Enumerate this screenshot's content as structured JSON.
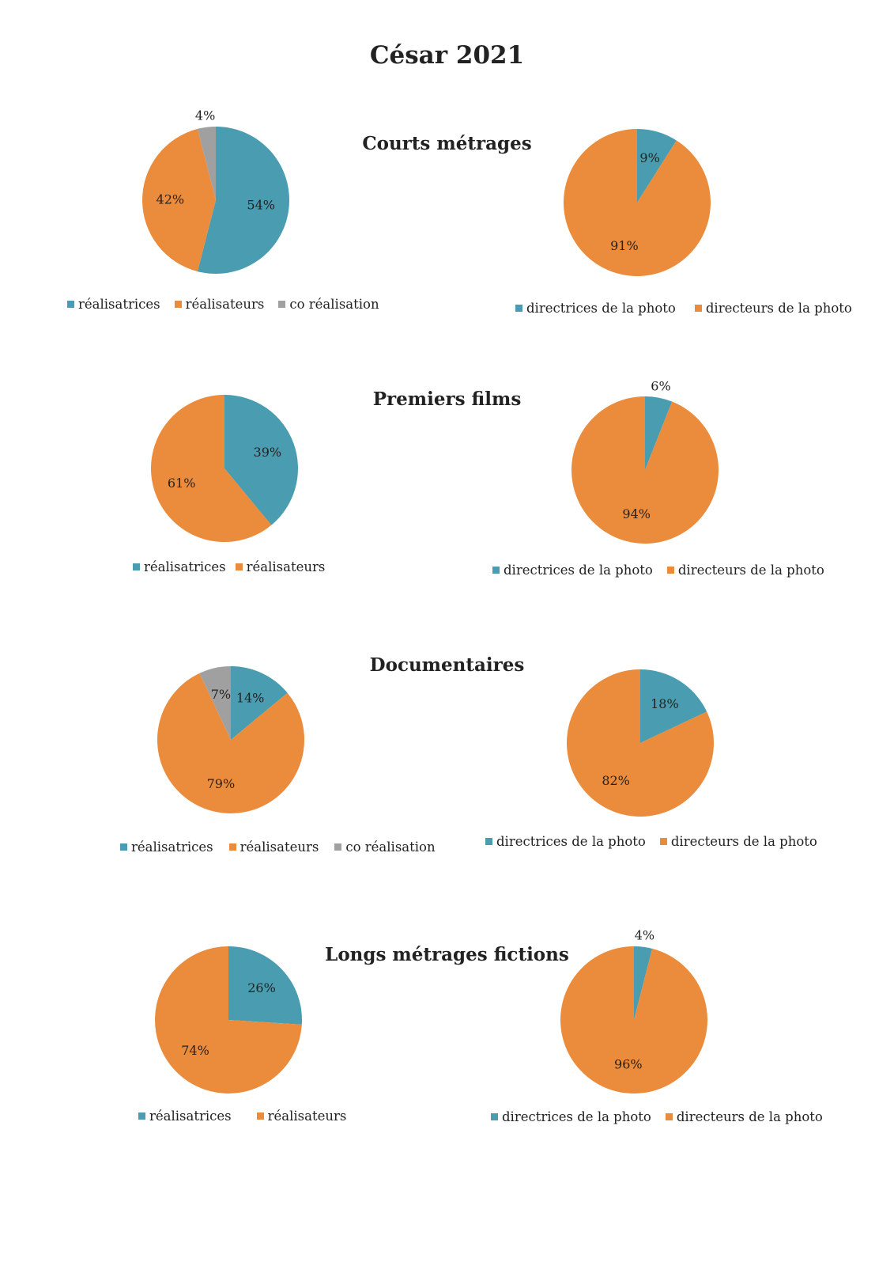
{
  "title": "César 2021",
  "colors": {
    "blue": "#4a9cb1",
    "orange": "#eb8b3c",
    "gray": "#a0a0a0"
  },
  "sections": [
    {
      "title": "Courts métrages"
    },
    {
      "title": "Premiers films"
    },
    {
      "title": "Documentaires"
    },
    {
      "title": "Longs métrages fictions"
    }
  ],
  "chart_data": [
    {
      "type": "pie",
      "section": "Courts métrages",
      "categories": [
        "réalisatrices",
        "réalisateurs",
        "co réalisation"
      ],
      "values": [
        54,
        42,
        4
      ],
      "labels": [
        "54%",
        "42%",
        "4%"
      ],
      "colors": [
        "#4a9cb1",
        "#eb8b3c",
        "#a0a0a0"
      ],
      "legend": "bottom"
    },
    {
      "type": "pie",
      "section": "Courts métrages",
      "categories": [
        "directrices de la photo",
        "directeurs de la photo"
      ],
      "values": [
        9,
        91
      ],
      "labels": [
        "9%",
        "91%"
      ],
      "colors": [
        "#4a9cb1",
        "#eb8b3c"
      ],
      "legend": "bottom"
    },
    {
      "type": "pie",
      "section": "Premiers films",
      "categories": [
        "réalisatrices",
        "réalisateurs"
      ],
      "values": [
        39,
        61
      ],
      "labels": [
        "39%",
        "61%"
      ],
      "colors": [
        "#4a9cb1",
        "#eb8b3c"
      ],
      "legend": "bottom"
    },
    {
      "type": "pie",
      "section": "Premiers films",
      "categories": [
        "directrices de la photo",
        "directeurs de la photo"
      ],
      "values": [
        6,
        94
      ],
      "labels": [
        "6%",
        "94%"
      ],
      "colors": [
        "#4a9cb1",
        "#eb8b3c"
      ],
      "legend": "bottom"
    },
    {
      "type": "pie",
      "section": "Documentaires",
      "categories": [
        "réalisatrices",
        "réalisateurs",
        "co réalisation"
      ],
      "values": [
        14,
        79,
        7
      ],
      "labels": [
        "14%",
        "79%",
        "7%"
      ],
      "colors": [
        "#4a9cb1",
        "#eb8b3c",
        "#a0a0a0"
      ],
      "legend": "bottom"
    },
    {
      "type": "pie",
      "section": "Documentaires",
      "categories": [
        "directrices de la photo",
        "directeurs de la photo"
      ],
      "values": [
        18,
        82
      ],
      "labels": [
        "18%",
        "82%"
      ],
      "colors": [
        "#4a9cb1",
        "#eb8b3c"
      ],
      "legend": "bottom"
    },
    {
      "type": "pie",
      "section": "Longs métrages fictions",
      "categories": [
        "réalisatrices",
        "réalisateurs"
      ],
      "values": [
        26,
        74
      ],
      "labels": [
        "26%",
        "74%"
      ],
      "colors": [
        "#4a9cb1",
        "#eb8b3c"
      ],
      "legend": "bottom"
    },
    {
      "type": "pie",
      "section": "Longs métrages fictions",
      "categories": [
        "directrices de la photo",
        "directeurs de la photo"
      ],
      "values": [
        4,
        96
      ],
      "labels": [
        "4%",
        "96%"
      ],
      "colors": [
        "#4a9cb1",
        "#eb8b3c"
      ],
      "legend": "bottom"
    }
  ]
}
